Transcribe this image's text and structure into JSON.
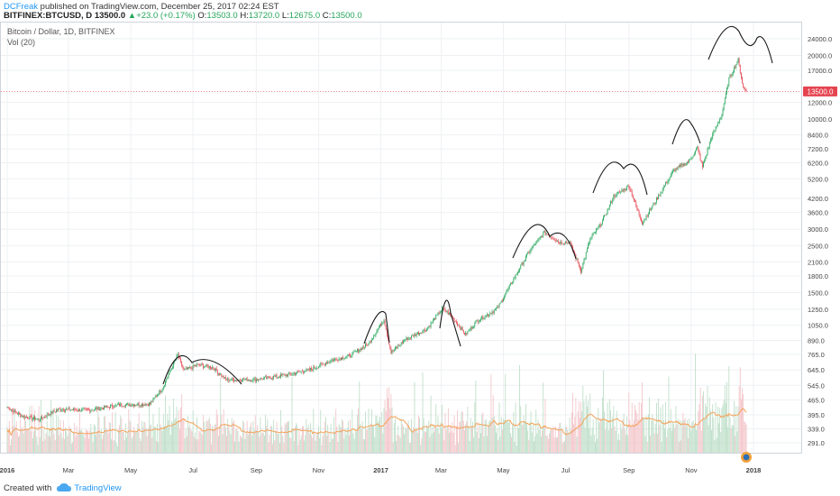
{
  "header": {
    "author": "DCFreak",
    "publish_text": "published on TradingView.com, December 25, 2017 02:24 EST",
    "symbol": "BITFINEX:BTCUSD, D",
    "last": "13500.0",
    "change": "+23.0 (+0.17%)",
    "open_label": "O:",
    "open": "13503.0",
    "high_label": "H:",
    "high": "13720.0",
    "low_label": "L:",
    "low": "12675.0",
    "close_label": "C:",
    "close": "13500.0"
  },
  "legend": {
    "title": "Bitcoin / Dollar, 1D, BITFINEX",
    "volume": "Vol (20)"
  },
  "last_price_label": "13500.0",
  "footer": {
    "created_with": "Created with",
    "brand": "TradingView"
  },
  "colors": {
    "up": "#26a65b",
    "down": "#e5434f",
    "volume_ma": "#f4a259",
    "price_line": "#e5434f",
    "drawing": "#1a1a1a",
    "author": "#2196f3"
  },
  "chart_data": {
    "type": "candlestick",
    "title": "Bitcoin / Dollar, 1D, BITFINEX",
    "scale": "log",
    "grid": true,
    "y_ticks": [
      291.0,
      339.0,
      395.0,
      465.0,
      545.0,
      645.0,
      765.0,
      890.0,
      1050.0,
      1250.0,
      1500.0,
      1800.0,
      2100.0,
      2500.0,
      3000.0,
      3600.0,
      4200.0,
      5200.0,
      6200.0,
      7200.0,
      8400.0,
      10000.0,
      12000.0,
      13500.0,
      17000.0,
      20000.0,
      24000.0
    ],
    "x_ticks": [
      "2016",
      "Mar",
      "May",
      "Jul",
      "Sep",
      "Nov",
      "2017",
      "Mar",
      "May",
      "Jul",
      "Sep",
      "Nov",
      "2018"
    ],
    "price_anchors": [
      [
        "2016-01-01",
        430
      ],
      [
        "2016-01-15",
        390
      ],
      [
        "2016-02-01",
        375
      ],
      [
        "2016-02-20",
        420
      ],
      [
        "2016-03-20",
        415
      ],
      [
        "2016-04-20",
        440
      ],
      [
        "2016-05-20",
        445
      ],
      [
        "2016-06-01",
        530
      ],
      [
        "2016-06-16",
        760
      ],
      [
        "2016-06-22",
        640
      ],
      [
        "2016-07-05",
        680
      ],
      [
        "2016-07-20",
        665
      ],
      [
        "2016-08-02",
        580
      ],
      [
        "2016-08-15",
        580
      ],
      [
        "2016-09-01",
        580
      ],
      [
        "2016-10-01",
        610
      ],
      [
        "2016-10-25",
        650
      ],
      [
        "2016-11-15",
        720
      ],
      [
        "2016-12-01",
        750
      ],
      [
        "2016-12-20",
        860
      ],
      [
        "2017-01-04",
        1120
      ],
      [
        "2017-01-11",
        780
      ],
      [
        "2017-01-25",
        900
      ],
      [
        "2017-02-15",
        1010
      ],
      [
        "2017-03-02",
        1260
      ],
      [
        "2017-03-10",
        1180
      ],
      [
        "2017-03-25",
        950
      ],
      [
        "2017-04-05",
        1100
      ],
      [
        "2017-04-25",
        1260
      ],
      [
        "2017-05-10",
        1700
      ],
      [
        "2017-05-25",
        2300
      ],
      [
        "2017-06-10",
        2900
      ],
      [
        "2017-06-25",
        2600
      ],
      [
        "2017-07-05",
        2600
      ],
      [
        "2017-07-16",
        1900
      ],
      [
        "2017-07-25",
        2700
      ],
      [
        "2017-08-05",
        3200
      ],
      [
        "2017-08-17",
        4300
      ],
      [
        "2017-09-01",
        4800
      ],
      [
        "2017-09-14",
        3200
      ],
      [
        "2017-10-01",
        4400
      ],
      [
        "2017-10-15",
        5700
      ],
      [
        "2017-10-30",
        6300
      ],
      [
        "2017-11-07",
        7300
      ],
      [
        "2017-11-12",
        5900
      ],
      [
        "2017-11-20",
        8000
      ],
      [
        "2017-12-01",
        10500
      ],
      [
        "2017-12-08",
        15500
      ],
      [
        "2017-12-17",
        19000
      ],
      [
        "2017-12-22",
        14000
      ],
      [
        "2017-12-25",
        13500
      ]
    ],
    "last": 13500.0
  }
}
